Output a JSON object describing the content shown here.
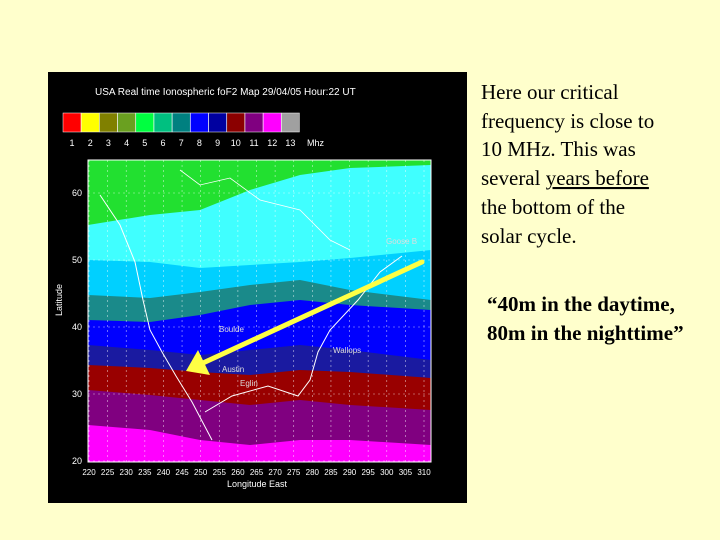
{
  "map": {
    "title": "USA Real time Ionospheric foF2 Map 29/04/05 Hour:22 UT",
    "scale_labels": [
      "1",
      "2",
      "3",
      "4",
      "5",
      "6",
      "7",
      "8",
      "9",
      "10",
      "11",
      "12",
      "13"
    ],
    "scale_unit": "Mhz",
    "y_axis_label": "Latitude",
    "y_ticks": [
      "20",
      "30",
      "40",
      "50",
      "60"
    ],
    "x_axis_label": "Longitude East",
    "x_ticks": [
      "220",
      "225",
      "230",
      "235",
      "240",
      "245",
      "250",
      "255",
      "260",
      "265",
      "270",
      "275",
      "280",
      "285",
      "290",
      "295",
      "300",
      "305",
      "310"
    ],
    "stations": [
      "Goose B",
      "Boulde",
      "Wallops",
      "Austin",
      "Eglin"
    ]
  },
  "text": {
    "paragraph": [
      "Here our critical",
      "frequency is close to",
      "10 MHz.  This was",
      "several ",
      "years before",
      "the bottom of the",
      "solar cycle."
    ],
    "quote": [
      "“40m in the daytime,",
      "80m in the nighttime”"
    ]
  }
}
